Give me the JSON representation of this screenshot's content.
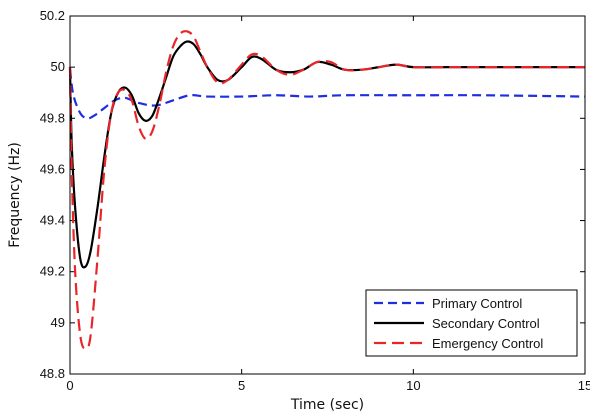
{
  "chart_data": {
    "type": "line",
    "xlabel": "Time (sec)",
    "ylabel": "Frequency (Hz)",
    "xlim": [
      0,
      15
    ],
    "ylim": [
      48.8,
      50.2
    ],
    "xticks": [
      0,
      5,
      10,
      15
    ],
    "yticks": [
      48.8,
      49,
      49.2,
      49.4,
      49.6,
      49.8,
      50,
      50.2
    ],
    "grid": false,
    "legend_position": "bottom-right",
    "series": [
      {
        "name": "Primary  Control",
        "color": "#1f2fe0",
        "style": "dashed",
        "x": [
          0,
          0.1,
          0.3,
          0.5,
          0.7,
          1.0,
          1.3,
          1.6,
          2.0,
          2.5,
          3.0,
          3.5,
          4.0,
          5.0,
          6.0,
          7.0,
          8.0,
          10.0,
          12.0,
          15.0
        ],
        "y": [
          49.99,
          49.89,
          49.82,
          49.8,
          49.81,
          49.84,
          49.87,
          49.88,
          49.86,
          49.85,
          49.87,
          49.89,
          49.885,
          49.885,
          49.89,
          49.885,
          49.89,
          49.89,
          49.89,
          49.885
        ]
      },
      {
        "name": "Secondary  Control",
        "color": "#000000",
        "style": "solid",
        "x": [
          0,
          0.05,
          0.15,
          0.3,
          0.45,
          0.6,
          0.8,
          1.0,
          1.2,
          1.4,
          1.6,
          1.8,
          2.0,
          2.2,
          2.4,
          2.6,
          2.8,
          3.0,
          3.2,
          3.4,
          3.6,
          3.8,
          4.0,
          4.3,
          4.6,
          5.0,
          5.3,
          5.6,
          6.0,
          6.4,
          6.8,
          7.2,
          7.6,
          8.0,
          8.5,
          9.0,
          9.5,
          10.0,
          11.0,
          12.0,
          13.0,
          14.0,
          15.0
        ],
        "y": [
          50.0,
          49.7,
          49.45,
          49.25,
          49.22,
          49.28,
          49.45,
          49.65,
          49.82,
          49.9,
          49.92,
          49.89,
          49.82,
          49.79,
          49.81,
          49.88,
          49.96,
          50.04,
          50.08,
          50.1,
          50.09,
          50.05,
          50.0,
          49.95,
          49.95,
          50.0,
          50.04,
          50.03,
          49.99,
          49.98,
          49.99,
          50.02,
          50.01,
          49.99,
          49.99,
          50.0,
          50.01,
          50.0,
          50.0,
          50.0,
          50.0,
          50.0,
          50.0
        ]
      },
      {
        "name": "Emergency  Control",
        "color": "#e8262a",
        "style": "dashed",
        "x": [
          0,
          0.05,
          0.15,
          0.3,
          0.45,
          0.6,
          0.8,
          1.0,
          1.2,
          1.4,
          1.6,
          1.8,
          2.0,
          2.2,
          2.4,
          2.6,
          2.8,
          3.0,
          3.2,
          3.4,
          3.6,
          3.8,
          4.0,
          4.3,
          4.6,
          5.0,
          5.3,
          5.6,
          6.0,
          6.4,
          6.8,
          7.2,
          7.6,
          8.0,
          8.5,
          9.0,
          9.5,
          10.0,
          11.0,
          12.0,
          13.0,
          14.0,
          15.0
        ],
        "y": [
          50.0,
          49.6,
          49.2,
          48.95,
          48.9,
          48.95,
          49.25,
          49.6,
          49.82,
          49.9,
          49.91,
          49.87,
          49.77,
          49.72,
          49.75,
          49.85,
          49.98,
          50.08,
          50.13,
          50.14,
          50.12,
          50.06,
          50.0,
          49.94,
          49.95,
          50.01,
          50.05,
          50.04,
          49.99,
          49.97,
          49.99,
          50.02,
          50.02,
          49.99,
          49.99,
          50.0,
          50.01,
          50.0,
          50.0,
          50.0,
          50.0,
          50.0,
          50.0
        ]
      }
    ]
  }
}
